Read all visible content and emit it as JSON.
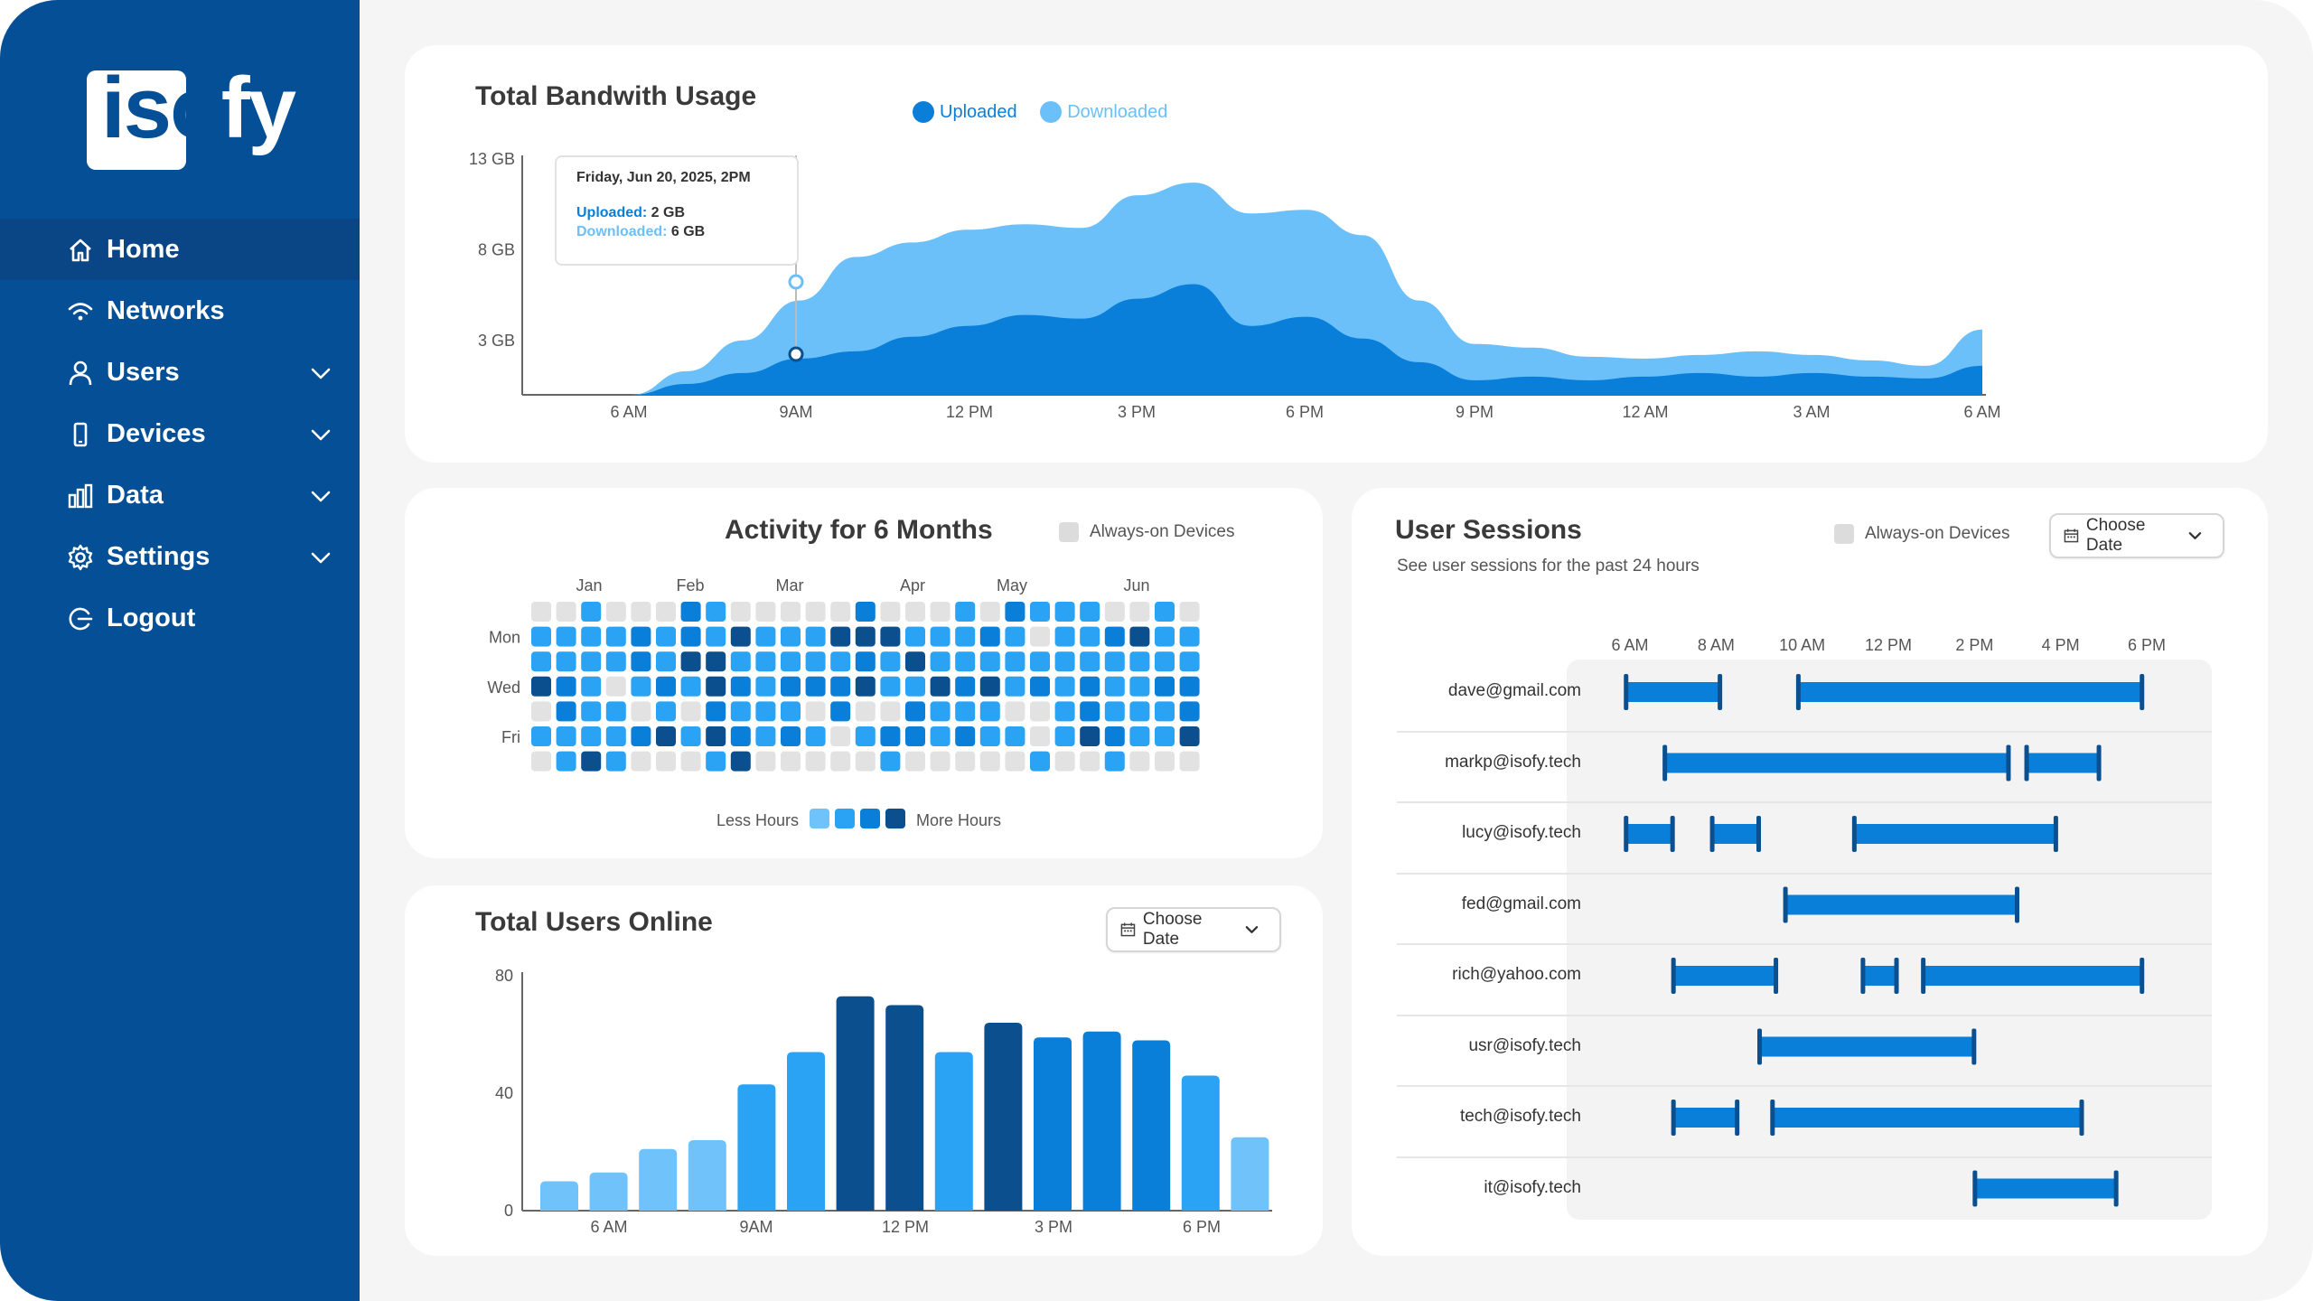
{
  "logo": {
    "text_a": "iso",
    "text_b": "fy",
    "full": "isofy"
  },
  "nav": [
    {
      "label": "Home",
      "icon": "home-icon",
      "active": true,
      "has_chevron": false
    },
    {
      "label": "Networks",
      "icon": "wifi-icon",
      "active": false,
      "has_chevron": false
    },
    {
      "label": "Users",
      "icon": "user-icon",
      "active": false,
      "has_chevron": true
    },
    {
      "label": "Devices",
      "icon": "phone-icon",
      "active": false,
      "has_chevron": true
    },
    {
      "label": "Data",
      "icon": "bar-chart-icon",
      "active": false,
      "has_chevron": true
    },
    {
      "label": "Settings",
      "icon": "gear-icon",
      "active": false,
      "has_chevron": true
    },
    {
      "label": "Logout",
      "icon": "logout-icon",
      "active": false,
      "has_chevron": false
    }
  ],
  "colors": {
    "sidebar": "#054f96",
    "uploaded": "#0a7fd9",
    "downloaded": "#6cc0fa",
    "heat_empty": "#e2e2e2",
    "heat_levels": [
      "#70c2fb",
      "#2aa3f5",
      "#0a7fd9",
      "#0b4f8e"
    ]
  },
  "bandwidth": {
    "title": "Total Bandwith Usage",
    "legend": {
      "uploaded": "Uploaded",
      "downloaded": "Downloaded"
    },
    "tooltip": {
      "date": "Friday, Jun 20, 2025, 2PM",
      "uploaded_label": "Uploaded:",
      "uploaded_value": "2 GB",
      "downloaded_label": "Downloaded:",
      "downloaded_value": "6 GB"
    }
  },
  "activity": {
    "title": "Activity for 6 Months",
    "toggle_label": "Always-on Devices",
    "months": [
      "Jan",
      "Feb",
      "Mar",
      "Apr",
      "May",
      "Jun"
    ],
    "days": [
      "Mon",
      "Wed",
      "Fri"
    ],
    "legend_less": "Less Hours",
    "legend_more": "More Hours",
    "grid": [
      [
        0,
        0,
        2,
        0,
        0,
        0,
        3,
        2,
        0,
        0,
        0,
        0,
        0,
        3,
        0,
        0,
        0,
        2,
        0,
        3,
        2,
        2,
        2,
        0,
        0,
        2,
        0
      ],
      [
        2,
        2,
        2,
        2,
        3,
        2,
        3,
        2,
        4,
        2,
        2,
        2,
        4,
        4,
        4,
        2,
        2,
        2,
        3,
        2,
        0,
        2,
        2,
        3,
        4,
        2,
        2
      ],
      [
        2,
        2,
        2,
        2,
        3,
        2,
        4,
        4,
        2,
        2,
        2,
        2,
        2,
        3,
        2,
        4,
        2,
        2,
        2,
        2,
        2,
        2,
        2,
        2,
        2,
        2,
        2
      ],
      [
        4,
        3,
        2,
        0,
        2,
        3,
        2,
        4,
        3,
        2,
        3,
        3,
        3,
        4,
        2,
        2,
        4,
        3,
        4,
        2,
        3,
        2,
        3,
        2,
        2,
        3,
        3
      ],
      [
        0,
        3,
        2,
        2,
        0,
        2,
        0,
        3,
        2,
        2,
        2,
        0,
        3,
        0,
        0,
        3,
        2,
        2,
        2,
        0,
        0,
        2,
        3,
        2,
        2,
        2,
        3
      ],
      [
        2,
        2,
        2,
        2,
        3,
        4,
        2,
        4,
        3,
        2,
        3,
        2,
        0,
        2,
        3,
        3,
        2,
        3,
        2,
        2,
        0,
        2,
        4,
        3,
        2,
        2,
        4
      ],
      [
        0,
        2,
        4,
        2,
        0,
        0,
        0,
        2,
        4,
        0,
        0,
        0,
        0,
        0,
        2,
        0,
        0,
        0,
        0,
        0,
        2,
        0,
        0,
        2,
        0,
        0,
        0
      ]
    ]
  },
  "users_online": {
    "title": "Total Users Online",
    "date_button": "Choose Date"
  },
  "sessions": {
    "title": "User Sessions",
    "subtitle": "See user sessions for the past 24 hours",
    "toggle_label": "Always-on Devices",
    "date_button": "Choose Date",
    "time_labels": [
      "6 AM",
      "8 AM",
      "10 AM",
      "12 PM",
      "2 PM",
      "4 PM",
      "6 PM"
    ],
    "users": [
      {
        "email": "dave@gmail.com",
        "sessions": [
          [
            5.9,
            8.1
          ],
          [
            9.9,
            17.9
          ]
        ]
      },
      {
        "email": "markp@isofy.tech",
        "sessions": [
          [
            6.8,
            14.8
          ],
          [
            15.2,
            16.9
          ]
        ]
      },
      {
        "email": "lucy@isofy.tech",
        "sessions": [
          [
            5.9,
            7.0
          ],
          [
            7.9,
            9.0
          ],
          [
            11.2,
            15.9
          ]
        ]
      },
      {
        "email": "fed@gmail.com",
        "sessions": [
          [
            9.6,
            15.0
          ]
        ]
      },
      {
        "email": "rich@yahoo.com",
        "sessions": [
          [
            7.0,
            9.4
          ],
          [
            11.4,
            12.2
          ],
          [
            12.8,
            17.9
          ]
        ]
      },
      {
        "email": "usr@isofy.tech",
        "sessions": [
          [
            9.0,
            14.0
          ]
        ]
      },
      {
        "email": "tech@isofy.tech",
        "sessions": [
          [
            7.0,
            8.5
          ],
          [
            9.3,
            16.5
          ]
        ]
      },
      {
        "email": "it@isofy.tech",
        "sessions": [
          [
            14.0,
            17.3
          ]
        ]
      }
    ]
  },
  "chart_data": [
    {
      "type": "area",
      "title": "Total Bandwith Usage",
      "xlabel": "",
      "ylabel": "",
      "x_tick_labels": [
        "6 AM",
        "9AM",
        "12 PM",
        "3 PM",
        "6 PM",
        "9 PM",
        "12 AM",
        "3 AM",
        "6 AM"
      ],
      "y_tick_labels": [
        "13 GB",
        "8 GB",
        "3 GB"
      ],
      "y_ticks": [
        13,
        8,
        3
      ],
      "ylim": [
        0,
        13
      ],
      "x": [
        0,
        1,
        2,
        3,
        4,
        5,
        6,
        7,
        8,
        9,
        10,
        11,
        12,
        13,
        14,
        15,
        16,
        17,
        18,
        19,
        20,
        21,
        22,
        23,
        24,
        25
      ],
      "series": [
        {
          "name": "Uploaded",
          "color": "#0a7fd9",
          "values": [
            0,
            0,
            0.6,
            1.2,
            2.0,
            2.4,
            3.2,
            3.8,
            4.4,
            4.2,
            5.3,
            6.1,
            3.8,
            4.3,
            3.1,
            1.8,
            0.8,
            1.0,
            0.8,
            1.0,
            1.2,
            1.0,
            1.2,
            1.0,
            0.9,
            1.6
          ]
        },
        {
          "name": "Downloaded",
          "color": "#6cc0fa",
          "values": [
            0,
            0,
            1.3,
            3.0,
            5.2,
            7.6,
            8.4,
            9.1,
            9.4,
            9.2,
            11.0,
            11.7,
            10.0,
            10.2,
            8.8,
            5.2,
            2.8,
            2.6,
            2.1,
            2.0,
            2.2,
            2.4,
            2.2,
            1.9,
            1.6,
            3.6
          ]
        }
      ],
      "legend_position": "top"
    },
    {
      "type": "bar",
      "title": "Total Users Online",
      "xlabel": "",
      "ylabel": "",
      "x_tick_labels": [
        "6 AM",
        "9AM",
        "12 PM",
        "3 PM",
        "6 PM"
      ],
      "y_tick_labels": [
        "80",
        "40",
        "0"
      ],
      "ylim": [
        0,
        80
      ],
      "values": [
        10,
        13,
        21,
        24,
        43,
        54,
        73,
        70,
        54,
        64,
        59,
        61,
        58,
        46,
        25
      ],
      "bar_color_levels": [
        0,
        0,
        0,
        0,
        1,
        1,
        3,
        3,
        1,
        3,
        2,
        2,
        2,
        1,
        0
      ]
    }
  ]
}
